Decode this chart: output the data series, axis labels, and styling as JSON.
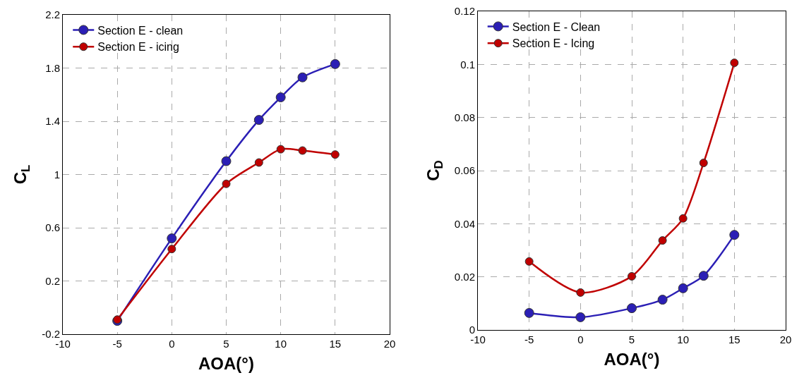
{
  "chart_data": [
    {
      "type": "line",
      "xlabel": "AOA(°)",
      "ylabel": "C$_{L}$",
      "x": [
        -5,
        0,
        5,
        8,
        10,
        12,
        15
      ],
      "xlim": [
        -10,
        20
      ],
      "xticks": [
        -10,
        -5,
        0,
        5,
        10,
        15,
        20
      ],
      "ylim": [
        -0.2,
        2.2
      ],
      "yticks": [
        -0.2,
        0.2,
        0.6,
        1,
        1.4,
        1.8,
        2.2
      ],
      "grid": true,
      "legend": "top left",
      "marker": "circle",
      "line_style": "solid",
      "series": [
        {
          "name": "Section E - clean",
          "color": "#2b1fb5",
          "values": [
            -0.1,
            0.52,
            1.1,
            1.41,
            1.58,
            1.73,
            1.83
          ]
        },
        {
          "name": "Section E - icing",
          "color": "#c00000",
          "values": [
            -0.09,
            0.44,
            0.93,
            1.09,
            1.19,
            1.18,
            1.15
          ]
        }
      ]
    },
    {
      "type": "line",
      "xlabel": "AOA(°)",
      "ylabel": "C$_{D}$",
      "x": [
        -5,
        0,
        5,
        8,
        10,
        12,
        15
      ],
      "xlim": [
        -10,
        20
      ],
      "xticks": [
        -10,
        -5,
        0,
        5,
        10,
        15,
        20
      ],
      "ylim": [
        0,
        0.12
      ],
      "yticks": [
        0,
        0.02,
        0.04,
        0.06,
        0.08,
        0.1,
        0.12
      ],
      "grid": true,
      "legend": "top left",
      "marker": "circle",
      "line_style": "solid",
      "series": [
        {
          "name": "Section E - Clean",
          "color": "#2b1fb5",
          "values": [
            0.0064,
            0.0048,
            0.0082,
            0.0114,
            0.0157,
            0.0204,
            0.0358
          ]
        },
        {
          "name": "Section E - Icing",
          "color": "#c00000",
          "values": [
            0.0258,
            0.0141,
            0.0202,
            0.0337,
            0.042,
            0.0629,
            0.1006
          ]
        }
      ]
    }
  ]
}
